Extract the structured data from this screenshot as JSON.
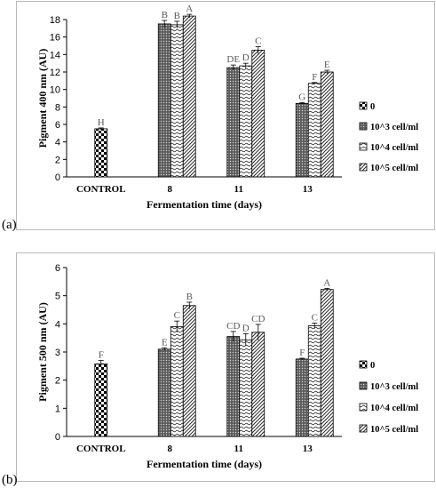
{
  "panels": [
    {
      "letter": "(a)"
    },
    {
      "letter": "(b)"
    }
  ],
  "chart_data": [
    {
      "type": "bar",
      "categories": [
        "CONTROL",
        "8",
        "11",
        "13"
      ],
      "xlabel": "Fermentation time (days)",
      "ylabel": "Pigment 400 nm (AU)",
      "ylim": [
        0,
        18
      ],
      "yticks": [
        0,
        2,
        4,
        6,
        8,
        10,
        12,
        14,
        16,
        18
      ],
      "grid": false,
      "legend_position": "right",
      "series": [
        {
          "name": "0",
          "values": [
            5.5,
            null,
            null,
            null
          ],
          "errors": [
            0.1,
            null,
            null,
            null
          ],
          "sig": [
            "H",
            null,
            null,
            null
          ],
          "pattern": "checker"
        },
        {
          "name": "10^3 cell/ml",
          "values": [
            null,
            17.5,
            12.5,
            8.4
          ],
          "errors": [
            null,
            0.4,
            0.3,
            0.1
          ],
          "sig": [
            null,
            "B",
            "DE",
            "G"
          ],
          "pattern": "dots"
        },
        {
          "name": "10^4 cell/ml",
          "values": [
            null,
            17.4,
            12.7,
            10.7
          ],
          "errors": [
            null,
            0.4,
            0.3,
            0.1
          ],
          "sig": [
            null,
            "B",
            "D",
            "F"
          ],
          "pattern": "waves"
        },
        {
          "name": "10^5 cell/ml",
          "values": [
            null,
            18.4,
            14.5,
            12.0
          ],
          "errors": [
            null,
            0.2,
            0.4,
            0.2
          ],
          "sig": [
            null,
            "A",
            "C",
            "E"
          ],
          "pattern": "diagonal"
        }
      ]
    },
    {
      "type": "bar",
      "categories": [
        "CONTROL",
        "8",
        "11",
        "13"
      ],
      "xlabel": "Fermentation time (days)",
      "ylabel": "Pigment 500 nm (AU)",
      "ylim": [
        0,
        6
      ],
      "yticks": [
        0,
        1,
        2,
        3,
        4,
        5,
        6
      ],
      "grid": false,
      "legend_position": "right",
      "series": [
        {
          "name": "0",
          "values": [
            2.58,
            null,
            null,
            null
          ],
          "errors": [
            0.12,
            null,
            null,
            null
          ],
          "sig": [
            "F",
            null,
            null,
            null
          ],
          "pattern": "checker"
        },
        {
          "name": "10^3 cell/ml",
          "values": [
            null,
            3.1,
            3.55,
            2.75
          ],
          "errors": [
            null,
            0.05,
            0.18,
            0.03
          ],
          "sig": [
            null,
            "E",
            "CD",
            "F"
          ],
          "pattern": "dots"
        },
        {
          "name": "10^4 cell/ml",
          "values": [
            null,
            3.9,
            3.43,
            3.93
          ],
          "errors": [
            null,
            0.2,
            0.22,
            0.1
          ],
          "sig": [
            null,
            "C",
            "D",
            "C"
          ],
          "pattern": "waves"
        },
        {
          "name": "10^5 cell/ml",
          "values": [
            null,
            4.65,
            3.7,
            5.22
          ],
          "errors": [
            null,
            0.12,
            0.28,
            0.04
          ],
          "sig": [
            null,
            "B",
            "CD",
            "A"
          ],
          "pattern": "diagonal"
        }
      ]
    }
  ]
}
